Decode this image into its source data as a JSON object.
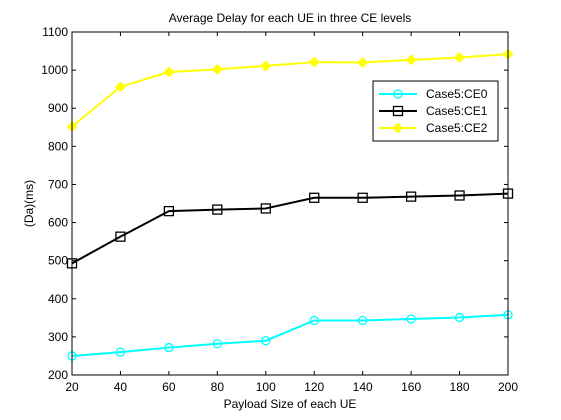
{
  "chart_data": {
    "type": "line",
    "title": "Average Delay for each UE in three CE levels",
    "xlabel": "Payload Size of each UE",
    "ylabel": "(Da)(ms)",
    "xlim": [
      20,
      200
    ],
    "ylim": [
      200,
      1100
    ],
    "xticks": [
      20,
      40,
      60,
      80,
      100,
      120,
      140,
      160,
      180,
      200
    ],
    "yticks": [
      200,
      300,
      400,
      500,
      600,
      700,
      800,
      900,
      1000,
      1100
    ],
    "grid": false,
    "legend": "top-right",
    "x": [
      20,
      40,
      60,
      80,
      100,
      120,
      140,
      160,
      180,
      200
    ],
    "series": [
      {
        "name": "Case5:CE0",
        "color": "#00ffff",
        "marker": "circle",
        "values": [
          250,
          260,
          272,
          282,
          290,
          343,
          343,
          347,
          351,
          358
        ]
      },
      {
        "name": "Case5:CE1",
        "color": "#000000",
        "marker": "square",
        "values": [
          493,
          563,
          630,
          634,
          637,
          665,
          665,
          668,
          671,
          676
        ]
      },
      {
        "name": "Case5:CE2",
        "color": "#ffff00",
        "marker": "diamond",
        "values": [
          852,
          956,
          995,
          1002,
          1011,
          1021,
          1020,
          1027,
          1033,
          1042
        ]
      }
    ]
  }
}
